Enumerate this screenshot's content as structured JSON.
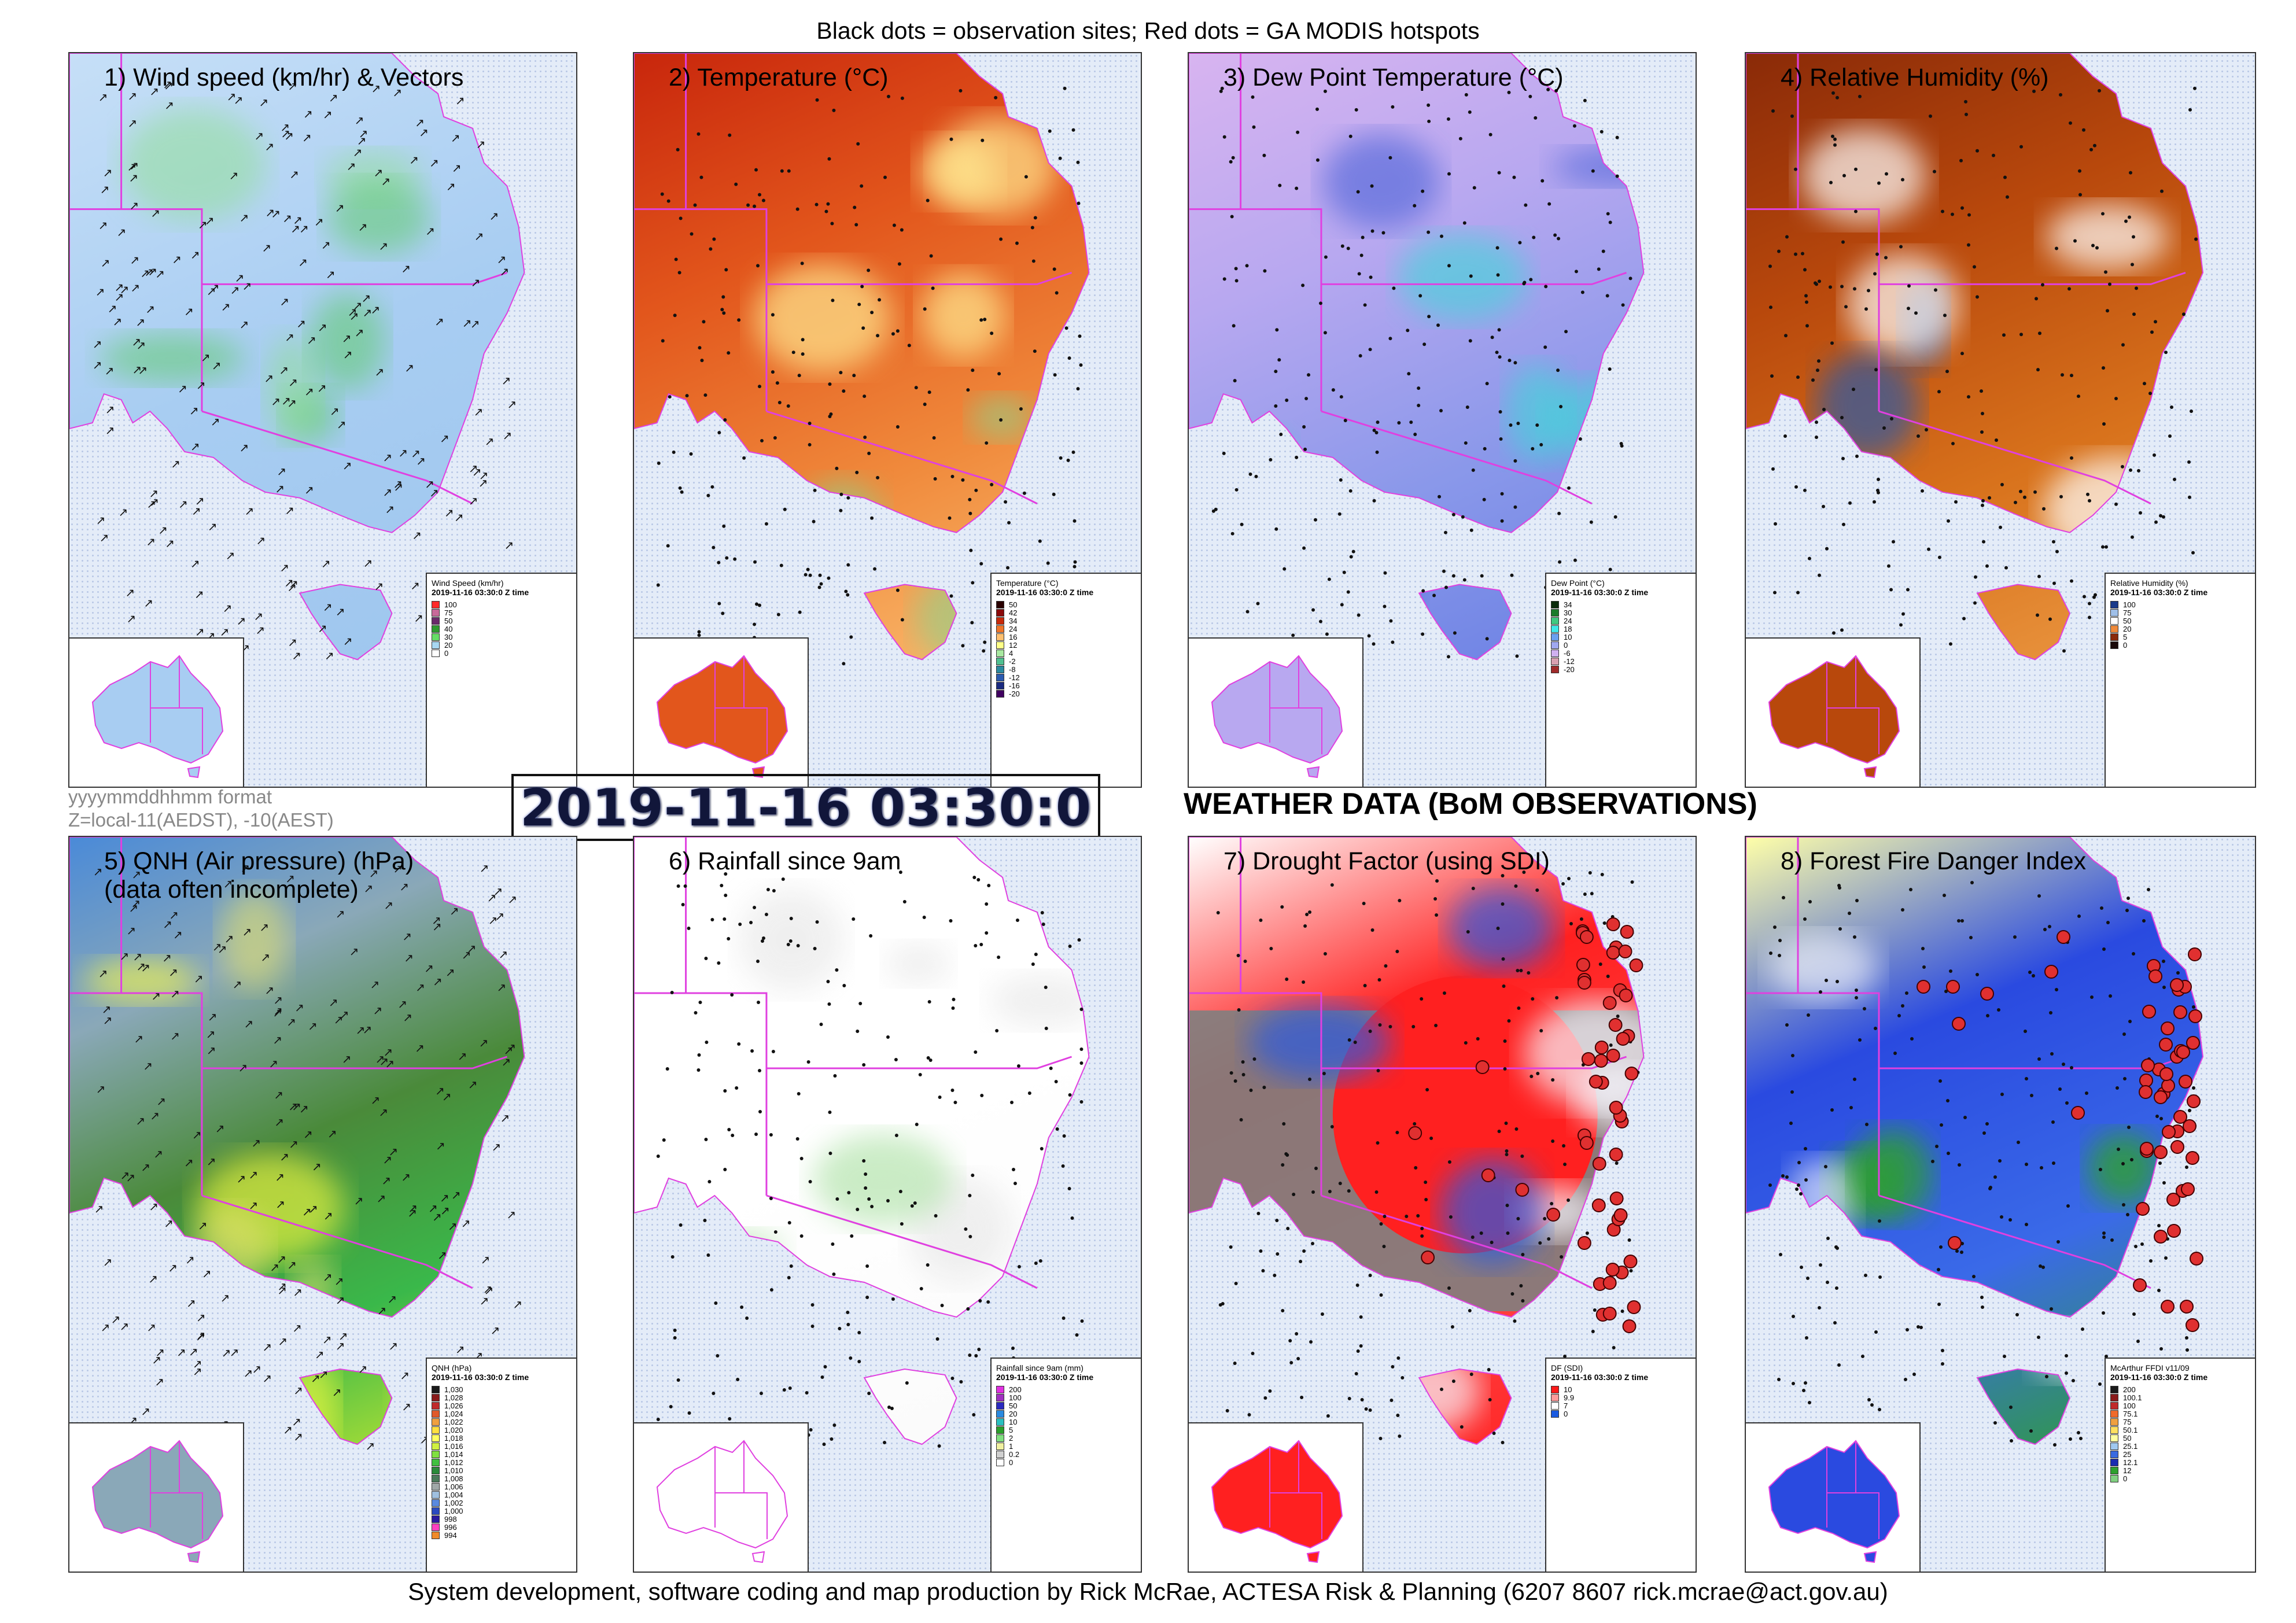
{
  "header": {
    "title": "Black dots = observation sites; Red dots = GA MODIS hotspots"
  },
  "footer": {
    "credit": "System development, software coding and map production by Rick McRae, ACTESA Risk & Planning (6207 8607 rick.mcrae@act.gov.au)"
  },
  "center": {
    "format_line1": "yyyymmddhhmm format",
    "format_line2": "Z=local-11(AEDST), -10(AEST)",
    "datetime": "2019-11-16 03:30:0",
    "section_title": "WEATHER DATA (BoM OBSERVATIONS)"
  },
  "panels": [
    {
      "title": "1) Wind speed (km/hr) & Vectors",
      "title2": "",
      "legend": {
        "title": "Wind Speed (km/hr)",
        "date": "2019-11-16 03:30:0 Z time",
        "labels": [
          "100",
          "75",
          "50",
          "40",
          "30",
          "20",
          "0"
        ],
        "colors": [
          "#ff2a2a",
          "#c86a9a",
          "#6a2a6a",
          "#2e9a2e",
          "#66dd66",
          "#a8d8f2",
          "#ffffff"
        ]
      }
    },
    {
      "title": "2) Temperature (°C)",
      "title2": "",
      "legend": {
        "title": "Temperature (°C)",
        "date": "2019-11-16 03:30:0 Z time",
        "labels": [
          "50",
          "42",
          "34",
          "24",
          "16",
          "12",
          "4",
          "-2",
          "-8",
          "-12",
          "-16",
          "-20"
        ],
        "colors": [
          "#2a0000",
          "#8a0a0a",
          "#c82a0a",
          "#f0762a",
          "#ffc070",
          "#ffff88",
          "#a8e8a0",
          "#50c090",
          "#2a8aa0",
          "#2a5ab0",
          "#1a2a80",
          "#400060"
        ]
      }
    },
    {
      "title": "3) Dew Point Temperature (°C)",
      "title2": "",
      "legend": {
        "title": "Dew Point (°C)",
        "date": "2019-11-16 03:30:0 Z time",
        "labels": [
          "34",
          "30",
          "24",
          "18",
          "10",
          "0",
          "-6",
          "-12",
          "-20"
        ],
        "colors": [
          "#0a2a0a",
          "#1a7a2a",
          "#40c880",
          "#40e8e8",
          "#6aa0f0",
          "#a0a8f0",
          "#d0b0f0",
          "#d8a0b0",
          "#a02a2a"
        ]
      }
    },
    {
      "title": "4) Relative Humidity (%)",
      "title2": "",
      "legend": {
        "title": "Relative Humidity (%)",
        "date": "2019-11-16 03:30:0 Z time",
        "labels": [
          "100",
          "75",
          "50",
          "20",
          "5",
          "0"
        ],
        "colors": [
          "#1a3a8a",
          "#a0c0e8",
          "#ffffff",
          "#f08a3a",
          "#8a2a0a",
          "#1a0a0a"
        ]
      }
    },
    {
      "title": "5) QNH (Air pressure) (hPa)",
      "title2": "(data often incomplete)",
      "legend": {
        "title": "QNH (hPa)",
        "date": "2019-11-16 03:30:0 Z time",
        "labels": [
          "1,030",
          "1,028",
          "1,026",
          "1,024",
          "1,022",
          "1,020",
          "1,018",
          "1,016",
          "1,014",
          "1,012",
          "1,010",
          "1,008",
          "1,006",
          "1,004",
          "1,002",
          "1,000",
          "998",
          "996",
          "994"
        ],
        "colors": [
          "#1a1a1a",
          "#8a1a1a",
          "#c02a2a",
          "#e05a2a",
          "#f0a040",
          "#ffe040",
          "#ffff60",
          "#d0f040",
          "#80e040",
          "#40c040",
          "#2a8a3a",
          "#4a7a5a",
          "#a0a8a8",
          "#a0c0e0",
          "#5a8ae0",
          "#2a4ac0",
          "#2a1aa0",
          "#ff40c0",
          "#f08a2a"
        ]
      }
    },
    {
      "title": "6) Rainfall since 9am",
      "title2": "",
      "legend": {
        "title": "Rainfall since 9am (mm)",
        "date": "2019-11-16 03:30:0 Z time",
        "labels": [
          "200",
          "100",
          "50",
          "20",
          "10",
          "5",
          "2",
          "1",
          "0.2",
          "0"
        ],
        "colors": [
          "#e030e0",
          "#a030c0",
          "#2a2ac0",
          "#2a8ae0",
          "#2ac0c0",
          "#2aa02a",
          "#80e080",
          "#f0f0a0",
          "#d0d0d0",
          "#ffffff"
        ]
      }
    },
    {
      "title": "7) Drought Factor (using SDI)",
      "title2": "",
      "legend": {
        "title": "DF (SDI)",
        "date": "2019-11-16 03:30:0 Z time",
        "labels": [
          "10",
          "9.9",
          "7",
          "0"
        ],
        "colors": [
          "#ff1a1a",
          "#ff9a9a",
          "#ffffff",
          "#1a5ae0"
        ]
      }
    },
    {
      "title": "8) Forest Fire Danger Index",
      "title2": "",
      "legend": {
        "title": "McArthur FFDI v11/09",
        "date": "2019-11-16 03:30:0 Z time",
        "labels": [
          "200",
          "100.1",
          "100",
          "75.1",
          "75",
          "50.1",
          "50",
          "25.1",
          "25",
          "12.1",
          "12",
          "0"
        ],
        "colors": [
          "#1a1a1a",
          "#8a1a1a",
          "#c02a2a",
          "#f06a2a",
          "#f0a040",
          "#ffe060",
          "#ffffa0",
          "#a0c8f0",
          "#3a6ae0",
          "#1a2ab0",
          "#2ea02e",
          "#80d080"
        ]
      }
    }
  ]
}
